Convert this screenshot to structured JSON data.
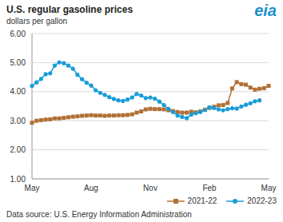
{
  "chart_data": {
    "type": "line",
    "title": "U.S. regular gasoline prices",
    "subtitle": "dollars per gallon",
    "logo": "eia",
    "source": "Data source: U.S. Energy Information Administration",
    "categories": [
      "May",
      null,
      null,
      null,
      null,
      null,
      null,
      null,
      null,
      null,
      null,
      null,
      null,
      "Aug",
      null,
      null,
      null,
      null,
      null,
      null,
      null,
      null,
      null,
      null,
      null,
      null,
      "Nov",
      null,
      null,
      null,
      null,
      null,
      null,
      null,
      null,
      null,
      null,
      null,
      null,
      "Feb",
      null,
      null,
      null,
      null,
      null,
      null,
      null,
      null,
      null,
      null,
      null,
      null,
      "May"
    ],
    "series": [
      {
        "name": "2021-22",
        "color": "#b07036",
        "marker": "square",
        "values": [
          2.93,
          3.0,
          3.02,
          3.04,
          3.05,
          3.08,
          3.08,
          3.1,
          3.12,
          3.14,
          3.15,
          3.17,
          3.18,
          3.19,
          3.18,
          3.18,
          3.17,
          3.18,
          3.18,
          3.19,
          3.19,
          3.2,
          3.22,
          3.28,
          3.32,
          3.39,
          3.41,
          3.4,
          3.4,
          3.39,
          3.36,
          3.33,
          3.3,
          3.28,
          3.28,
          3.31,
          3.29,
          3.32,
          3.38,
          3.44,
          3.48,
          3.53,
          3.54,
          3.61,
          4.11,
          4.33,
          4.26,
          4.24,
          4.14,
          4.07,
          4.1,
          4.12,
          4.2
        ]
      },
      {
        "name": "2022-23",
        "color": "#189dd8",
        "marker": "circle",
        "values": [
          4.2,
          4.32,
          4.44,
          4.6,
          4.63,
          4.9,
          5.01,
          4.98,
          4.9,
          4.79,
          4.58,
          4.43,
          4.31,
          4.21,
          4.05,
          3.96,
          3.89,
          3.81,
          3.75,
          3.7,
          3.68,
          3.73,
          3.8,
          3.92,
          3.87,
          3.78,
          3.8,
          3.76,
          3.66,
          3.54,
          3.41,
          3.3,
          3.18,
          3.13,
          3.09,
          3.21,
          3.26,
          3.3,
          3.37,
          3.46,
          3.44,
          3.39,
          3.36,
          3.4,
          3.43,
          3.42,
          3.49,
          3.55,
          3.6,
          3.67,
          3.7,
          null,
          null
        ]
      }
    ],
    "ylim": [
      1,
      6
    ],
    "yticks": [
      {
        "value": 1,
        "label": "1.00"
      },
      {
        "value": 2,
        "label": "2.00"
      },
      {
        "value": 3,
        "label": "3.00"
      },
      {
        "value": 4,
        "label": "4.00"
      },
      {
        "value": 5,
        "label": "5.00"
      },
      {
        "value": 6,
        "label": "6.00"
      }
    ],
    "grid": true,
    "legend": "bottom"
  }
}
